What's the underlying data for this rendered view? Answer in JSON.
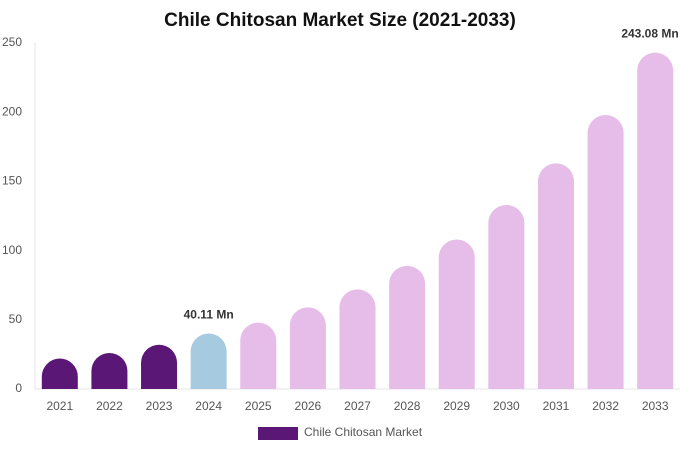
{
  "chart_data": {
    "type": "bar",
    "title": "Chile Chitosan Market Size (2021-2033)",
    "categories": [
      "2021",
      "2022",
      "2023",
      "2024",
      "2025",
      "2026",
      "2027",
      "2028",
      "2029",
      "2030",
      "2031",
      "2032",
      "2033"
    ],
    "series": [
      {
        "name": "Chile Chitosan Market",
        "color": "#5b1776",
        "values": [
          22,
          26,
          32,
          40.11,
          48,
          59,
          72,
          89,
          108,
          133,
          163,
          198,
          243.08
        ],
        "value_labels": [
          null,
          null,
          null,
          "40.11 Mn",
          null,
          null,
          null,
          null,
          null,
          null,
          null,
          null,
          "243.08 Mn"
        ],
        "bar_colors": [
          "#5b1776",
          "#5b1776",
          "#5b1776",
          "#a6cbe0",
          "#e6bce8",
          "#e6bce8",
          "#e6bce8",
          "#e6bce8",
          "#e6bce8",
          "#e6bce8",
          "#e6bce8",
          "#e6bce8",
          "#e6bce8"
        ]
      }
    ],
    "ylim": [
      0,
      250
    ],
    "yticks": [
      0,
      50,
      100,
      150,
      200,
      250
    ],
    "grid": false,
    "legend": "bottom"
  }
}
